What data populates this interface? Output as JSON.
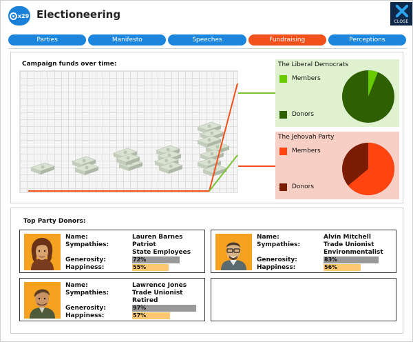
{
  "header": {
    "badge": "x29",
    "title": "Electioneering",
    "close_label": "CLOSE"
  },
  "tabs": [
    {
      "label": "Parties"
    },
    {
      "label": "Manifesto"
    },
    {
      "label": "Speeches"
    },
    {
      "label": "Fundraising",
      "active": true
    },
    {
      "label": "Perceptions"
    }
  ],
  "funds": {
    "title": "Campaign funds over time:",
    "colors": {
      "liberal": "#7ac231",
      "jehovah": "#f2511b"
    },
    "parties": [
      {
        "name": "The Liberal Democrats",
        "members_label": "Members",
        "donors_label": "Donors",
        "members_share": 0.06,
        "donors_share": 0.94,
        "members_color": "#66cc00",
        "donors_color": "#2e5f00"
      },
      {
        "name": "The Jehovah Party",
        "members_label": "Members",
        "donors_label": "Donors",
        "members_share": 0.64,
        "donors_share": 0.36,
        "members_color": "#ff4411",
        "donors_color": "#7a1d04"
      }
    ]
  },
  "donors": {
    "title": "Top Party Donors:",
    "labels": {
      "name": "Name:",
      "sympathies": "Sympathies:",
      "generosity": "Generosity:",
      "happiness": "Happiness:"
    },
    "cards": [
      {
        "name": "Lauren Barnes",
        "sympathies": [
          "Patriot",
          "State Employees"
        ],
        "generosity": "72%",
        "generosity_value": 72,
        "happiness": "55%",
        "happiness_value": 55
      },
      {
        "name": "Alvin Mitchell",
        "sympathies": [
          "Trade Unionist",
          "Environmentalist"
        ],
        "generosity": "83%",
        "generosity_value": 83,
        "happiness": "56%",
        "happiness_value": 56
      },
      {
        "name": "Lawrence Jones",
        "sympathies": [
          "Trade Unionist",
          "Retired"
        ],
        "generosity": "97%",
        "generosity_value": 97,
        "happiness": "57%",
        "happiness_value": 57
      }
    ],
    "bar_colors": {
      "generosity": "#999999",
      "happiness": "#ffc870"
    }
  }
}
